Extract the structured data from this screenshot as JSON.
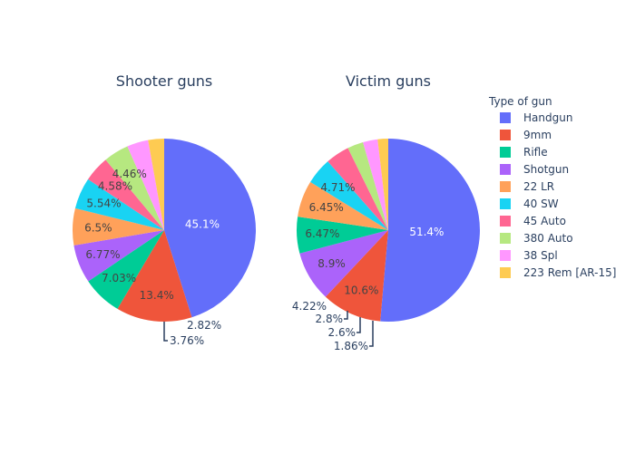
{
  "chart_data": [
    {
      "type": "pie",
      "title": "Shooter guns",
      "categories": [
        "Handgun",
        "9mm",
        "Rifle",
        "Shotgun",
        "22 LR",
        "40 SW",
        "45 Auto",
        "380 Auto",
        "38 Spl",
        "223 Rem [AR-15]"
      ],
      "values": [
        45.1,
        13.4,
        7.03,
        6.77,
        6.5,
        5.54,
        4.58,
        4.46,
        3.76,
        2.82
      ],
      "labels": [
        "45.1%",
        "13.4%",
        "7.03%",
        "6.77%",
        "6.5%",
        "5.54%",
        "4.58%",
        "4.46%",
        "3.76%",
        "2.82%"
      ]
    },
    {
      "type": "pie",
      "title": "Victim guns",
      "categories": [
        "Handgun",
        "9mm",
        "Shotgun",
        "Rifle",
        "22 LR",
        "40 SW",
        "45 Auto",
        "380 Auto",
        "38 Spl",
        "223 Rem [AR-15]"
      ],
      "values": [
        51.4,
        10.6,
        8.9,
        6.47,
        6.45,
        4.71,
        4.22,
        2.8,
        2.6,
        1.86
      ],
      "labels": [
        "51.4%",
        "10.6%",
        "8.9%",
        "6.47%",
        "6.45%",
        "4.71%",
        "4.22%",
        "2.8%",
        "2.6%",
        "1.86%"
      ]
    }
  ],
  "legend": {
    "title": "Type of gun",
    "placement": "right",
    "items": [
      {
        "label": "Handgun",
        "color": "#636efa"
      },
      {
        "label": "9mm",
        "color": "#EF553B"
      },
      {
        "label": "Rifle",
        "color": "#00cc96"
      },
      {
        "label": "Shotgun",
        "color": "#ab63fa"
      },
      {
        "label": "22 LR",
        "color": "#FFA15A"
      },
      {
        "label": "40 SW",
        "color": "#19d3f3"
      },
      {
        "label": "45 Auto",
        "color": "#FF6692"
      },
      {
        "label": "380 Auto",
        "color": "#B6E880"
      },
      {
        "label": "38 Spl",
        "color": "#FF97FF"
      },
      {
        "label": "223 Rem [AR-15]",
        "color": "#FECB52"
      }
    ]
  }
}
